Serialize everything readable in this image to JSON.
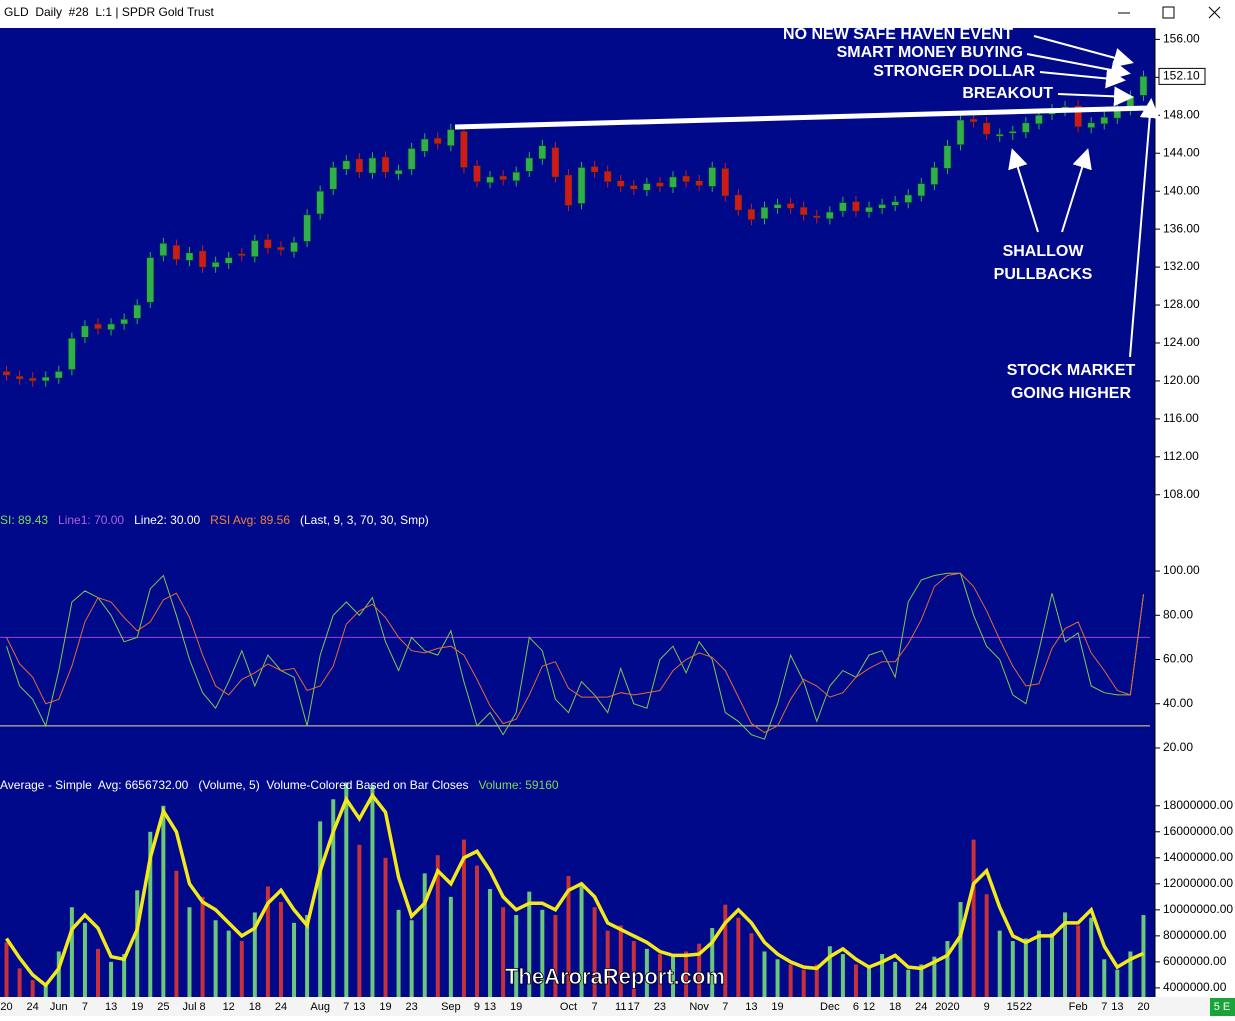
{
  "window_title": "GLD  Daily  #28  L:1 | SPDR Gold Trust",
  "watermark": "TheAroraReport.com",
  "status": "5 E",
  "chart_data": [
    {
      "type": "candlestick",
      "categories": [
        "20",
        null,
        "24",
        null,
        "Jun",
        null,
        "7",
        null,
        "13",
        null,
        "19",
        null,
        "25",
        null,
        "Jul",
        "8",
        null,
        "12",
        null,
        "18",
        null,
        "24",
        null,
        null,
        "Aug",
        null,
        "7",
        "13",
        null,
        "19",
        null,
        "23",
        null,
        null,
        "Sep",
        null,
        "9",
        "13",
        null,
        "19",
        null,
        null,
        null,
        "Oct",
        null,
        "7",
        null,
        "11",
        "17",
        null,
        "23",
        null,
        null,
        "Nov",
        null,
        "7",
        null,
        "13",
        null,
        "19",
        null,
        null,
        null,
        "Dec",
        null,
        "6",
        "12",
        null,
        "18",
        null,
        "24",
        null,
        "2020",
        null,
        null,
        "9",
        null,
        "15",
        "22",
        null,
        null,
        null,
        "Feb",
        null,
        "7",
        "13",
        null,
        "20"
      ],
      "open": [
        121.0,
        120.5,
        120.3,
        120.0,
        120.3,
        121.2,
        124.6,
        126.0,
        125.4,
        126.0,
        126.6,
        128.3,
        133.2,
        134.3,
        132.7,
        133.7,
        132.0,
        132.4,
        133.4,
        133.1,
        134.9,
        134.1,
        133.6,
        134.7,
        137.6,
        140.2,
        142.3,
        143.4,
        141.9,
        143.6,
        141.8,
        142.3,
        144.2,
        145.6,
        144.8,
        146.3,
        142.7,
        140.9,
        141.6,
        141.1,
        142.1,
        143.4,
        144.6,
        141.7,
        138.7,
        142.6,
        142.1,
        141.1,
        140.6,
        140.1,
        140.9,
        140.4,
        141.6,
        141.1,
        140.5,
        142.4,
        139.6,
        138.1,
        137.1,
        138.2,
        138.7,
        138.3,
        137.4,
        137.1,
        137.9,
        138.9,
        137.8,
        138.2,
        138.5,
        138.8,
        139.5,
        140.7,
        142.4,
        144.9,
        147.6,
        147.2,
        145.8,
        146.1,
        146.2,
        147.1,
        148.1,
        148.5,
        149.0,
        146.7,
        147.1,
        147.7,
        148.6,
        150.1
      ],
      "high": [
        121.6,
        121.1,
        120.9,
        121.0,
        121.6,
        125.1,
        126.4,
        126.6,
        126.6,
        127.1,
        128.6,
        133.6,
        135.1,
        134.9,
        134.1,
        134.3,
        133.1,
        133.6,
        134.0,
        135.4,
        135.5,
        134.7,
        135.2,
        138.1,
        140.6,
        143.1,
        143.8,
        144.0,
        144.1,
        144.2,
        142.8,
        145.1,
        146.1,
        146.2,
        147.1,
        146.9,
        143.3,
        142.1,
        142.2,
        142.6,
        144.1,
        145.4,
        145.2,
        142.3,
        143.1,
        143.2,
        142.7,
        141.7,
        141.2,
        141.4,
        141.5,
        142.1,
        142.2,
        141.7,
        143.1,
        143.0,
        140.2,
        138.7,
        138.9,
        139.2,
        139.3,
        138.9,
        138.0,
        138.4,
        139.4,
        139.5,
        138.9,
        139.2,
        139.5,
        140.2,
        141.4,
        143.1,
        145.4,
        148.1,
        148.2,
        147.8,
        146.6,
        146.9,
        147.8,
        148.6,
        149.2,
        149.5,
        149.6,
        147.8,
        148.4,
        149.1,
        150.6,
        152.7
      ],
      "low": [
        120.0,
        119.6,
        119.4,
        119.4,
        119.7,
        120.6,
        124.0,
        124.9,
        124.8,
        125.4,
        126.0,
        127.7,
        132.6,
        132.2,
        132.1,
        131.4,
        131.4,
        131.8,
        132.6,
        132.5,
        133.4,
        133.2,
        133.0,
        134.1,
        137.0,
        139.6,
        141.7,
        141.4,
        141.3,
        141.4,
        141.2,
        141.7,
        143.6,
        144.4,
        144.2,
        141.9,
        140.4,
        140.3,
        140.6,
        140.5,
        141.5,
        142.8,
        140.9,
        137.9,
        138.1,
        141.4,
        140.4,
        139.9,
        139.6,
        139.5,
        139.9,
        139.8,
        140.4,
        140.0,
        139.9,
        138.9,
        137.4,
        136.4,
        136.5,
        137.6,
        137.6,
        136.9,
        136.6,
        136.5,
        137.3,
        137.3,
        137.2,
        137.6,
        137.9,
        138.2,
        138.9,
        140.1,
        141.8,
        144.3,
        146.7,
        145.4,
        145.2,
        145.4,
        145.6,
        146.5,
        147.5,
        147.9,
        146.2,
        146.1,
        146.5,
        147.1,
        148.0,
        149.5
      ],
      "close": [
        120.6,
        120.2,
        120.0,
        120.4,
        121.0,
        124.5,
        125.8,
        125.5,
        126.0,
        126.5,
        128.0,
        133.0,
        134.5,
        132.8,
        133.5,
        132.0,
        132.5,
        133.0,
        133.2,
        134.8,
        134.0,
        133.8,
        134.6,
        137.5,
        140.0,
        142.5,
        143.2,
        142.0,
        143.5,
        142.0,
        142.2,
        144.5,
        145.5,
        145.0,
        146.5,
        142.5,
        141.0,
        141.5,
        141.2,
        142.0,
        143.5,
        144.8,
        141.5,
        138.5,
        142.5,
        142.0,
        141.0,
        140.5,
        140.2,
        140.8,
        140.5,
        141.5,
        141.0,
        140.6,
        142.5,
        139.5,
        138.0,
        137.0,
        138.3,
        138.6,
        138.2,
        137.5,
        137.2,
        137.8,
        138.8,
        137.9,
        138.3,
        138.6,
        138.9,
        139.6,
        140.8,
        142.5,
        144.8,
        147.5,
        147.3,
        146.0,
        146.0,
        146.3,
        147.2,
        148.0,
        148.6,
        148.9,
        146.8,
        147.2,
        147.8,
        148.5,
        150.0,
        152.1
      ],
      "up_color": "#2fb04a",
      "down_color": "#d01a1a",
      "ylim": [
        106.5,
        157.2
      ],
      "yticks": [
        {
          "value": 108,
          "label": "108.00"
        },
        {
          "value": 112,
          "label": "112.00"
        },
        {
          "value": 116,
          "label": "116.00"
        },
        {
          "value": 120,
          "label": "120.00"
        },
        {
          "value": 124,
          "label": "124.00"
        },
        {
          "value": 128,
          "label": "128.00"
        },
        {
          "value": 132,
          "label": "132.00"
        },
        {
          "value": 136,
          "label": "136.00"
        },
        {
          "value": 140,
          "label": "140.00"
        },
        {
          "value": 144,
          "label": "144.00"
        },
        {
          "value": 148,
          "label": "148.00"
        },
        {
          "value": 152,
          "label": "152.00"
        },
        {
          "value": 156,
          "label": "156.00"
        }
      ],
      "last_price": {
        "value": 152.1,
        "label": "152.10"
      },
      "annotations": [
        "NO NEW SAFE HAVEN EVENT",
        "SMART MONEY BUYING",
        "STRONGER DOLLAR",
        "BREAKOUT",
        "SHALLOW",
        "PULLBACKS",
        "STOCK MARKET",
        "GOING HIGHER"
      ]
    },
    {
      "type": "line",
      "legend": [
        {
          "label": "SI: 89.43",
          "color": "#7ed957"
        },
        {
          "label": "Line1: 70.00",
          "color": "#b060e0"
        },
        {
          "label": "Line2: 30.00",
          "color": "#ffffff"
        },
        {
          "label": "RSI Avg: 89.56",
          "color": "#f08040"
        },
        {
          "label": "(Last, 9, 3, 70, 30, Smp)",
          "color": "#ffffff"
        }
      ],
      "series": [
        {
          "color": "#7ec850",
          "values": [
            66,
            48,
            42,
            30,
            55,
            86,
            91,
            88,
            80,
            68,
            70,
            92,
            98,
            80,
            60,
            45,
            38,
            50,
            64,
            48,
            62,
            55,
            52,
            30,
            62,
            80,
            86,
            80,
            88,
            68,
            55,
            70,
            64,
            62,
            73,
            50,
            30,
            36,
            26,
            36,
            70,
            64,
            42,
            36,
            50,
            44,
            36,
            56,
            40,
            38,
            60,
            66,
            54,
            68,
            60,
            36,
            32,
            26,
            24,
            40,
            62,
            50,
            32,
            48,
            55,
            52,
            62,
            64,
            52,
            86,
            96,
            98,
            99,
            99,
            80,
            66,
            60,
            44,
            40,
            64,
            90,
            68,
            72,
            48,
            45,
            44,
            44,
            89.43
          ]
        },
        {
          "color": "#e06a3a",
          "values": [
            70,
            58,
            52,
            40,
            42,
            57,
            77,
            88,
            86,
            79,
            73,
            77,
            87,
            90,
            79,
            62,
            48,
            44,
            51,
            54,
            58,
            55,
            56,
            46,
            48,
            57,
            76,
            82,
            85,
            79,
            70,
            64,
            63,
            65,
            66,
            62,
            51,
            39,
            31,
            33,
            44,
            57,
            59,
            47,
            43,
            43,
            43,
            45,
            44,
            45,
            46,
            55,
            60,
            63,
            61,
            55,
            43,
            31,
            27,
            30,
            42,
            51,
            48,
            43,
            45,
            52,
            56,
            59,
            59,
            67,
            78,
            93,
            98,
            99,
            93,
            82,
            69,
            57,
            48,
            49,
            65,
            74,
            77,
            63,
            55,
            46,
            44,
            89.56
          ]
        }
      ],
      "lines": [
        {
          "value": 70,
          "color": "#a040d8"
        },
        {
          "value": 30,
          "color": "#e8e090"
        }
      ],
      "ylim": [
        12.3,
        127.6
      ],
      "yticks": [
        {
          "value": 20,
          "label": "20.00"
        },
        {
          "value": 40,
          "label": "40.00"
        },
        {
          "value": 60,
          "label": "60.00"
        },
        {
          "value": 80,
          "label": "80.00"
        },
        {
          "value": 100,
          "label": "100.00"
        }
      ]
    },
    {
      "type": "bar",
      "legend": [
        {
          "label": "Average - Simple  Avg: 6656732.00",
          "color": "#ffffff"
        },
        {
          "label": "(Volume, 5)  Volume-Colored Based on Bar Closes",
          "color": "#ffffff"
        },
        {
          "label": "Volume: 59160",
          "color": "#7ed957"
        }
      ],
      "values": [
        7500000,
        5500000,
        4600000,
        4400000,
        6800000,
        10200000,
        9000000,
        7000000,
        6000000,
        6600000,
        11500000,
        16000000,
        18000000,
        13000000,
        10200000,
        11000000,
        9200000,
        8400000,
        7600000,
        9800000,
        11800000,
        10600000,
        9000000,
        9600000,
        16800000,
        18500000,
        19800000,
        15000000,
        19600000,
        14000000,
        10000000,
        9200000,
        12800000,
        14200000,
        11000000,
        15400000,
        13400000,
        11600000,
        10200000,
        9600000,
        11400000,
        10000000,
        9600000,
        12600000,
        11800000,
        10200000,
        8400000,
        8800000,
        7600000,
        7000000,
        6600000,
        6400000,
        6800000,
        7400000,
        8600000,
        10400000,
        9400000,
        8200000,
        6800000,
        6200000,
        5800000,
        5400000,
        5800000,
        7200000,
        6600000,
        5800000,
        5600000,
        6600000,
        6000000,
        5400000,
        5800000,
        6400000,
        7600000,
        10600000,
        15400000,
        11200000,
        8400000,
        7600000,
        7800000,
        8400000,
        8200000,
        9800000,
        8800000,
        9400000,
        6200000,
        5400000,
        6800000,
        9600000
      ],
      "up_color": "#6cc77a",
      "down_color": "#c8303a",
      "average": {
        "color": "#f2e81c",
        "values": [
          7800000,
          6300000,
          5000000,
          4200000,
          5500000,
          8500000,
          9600000,
          8600000,
          6400000,
          6200000,
          8500000,
          14000000,
          17600000,
          16000000,
          12000000,
          10600000,
          10000000,
          9000000,
          8000000,
          8600000,
          10500000,
          11500000,
          10000000,
          8800000,
          13000000,
          16000000,
          18500000,
          17000000,
          18800000,
          17500000,
          12500000,
          9500000,
          10500000,
          13000000,
          12000000,
          14000000,
          14500000,
          13000000,
          11000000,
          10000000,
          10500000,
          10500000,
          10000000,
          11500000,
          12000000,
          11000000,
          9000000,
          8500000,
          8000000,
          7500000,
          6800000,
          6500000,
          6500000,
          6600000,
          7500000,
          9000000,
          10000000,
          9000000,
          7500000,
          6600000,
          6000000,
          5600000,
          5500000,
          6400000,
          7000000,
          6200000,
          5600000,
          6000000,
          6500000,
          5600000,
          5500000,
          6000000,
          6500000,
          8000000,
          12000000,
          13000000,
          10200000,
          8000000,
          7500000,
          8000000,
          8000000,
          9000000,
          9000000,
          10000000,
          7200000,
          5600000,
          6200000,
          6656732
        ]
      },
      "ylim": [
        3300000,
        20750000
      ],
      "yticks": [
        {
          "value": 4000000,
          "label": "4000000.00"
        },
        {
          "value": 6000000,
          "label": "6000000.00"
        },
        {
          "value": 8000000,
          "label": "8000000.00"
        },
        {
          "value": 10000000,
          "label": "10000000.00"
        },
        {
          "value": 12000000,
          "label": "12000000.00"
        },
        {
          "value": 14000000,
          "label": "14000000.00"
        },
        {
          "value": 16000000,
          "label": "16000000.00"
        },
        {
          "value": 18000000,
          "label": "18000000.00"
        }
      ]
    }
  ]
}
